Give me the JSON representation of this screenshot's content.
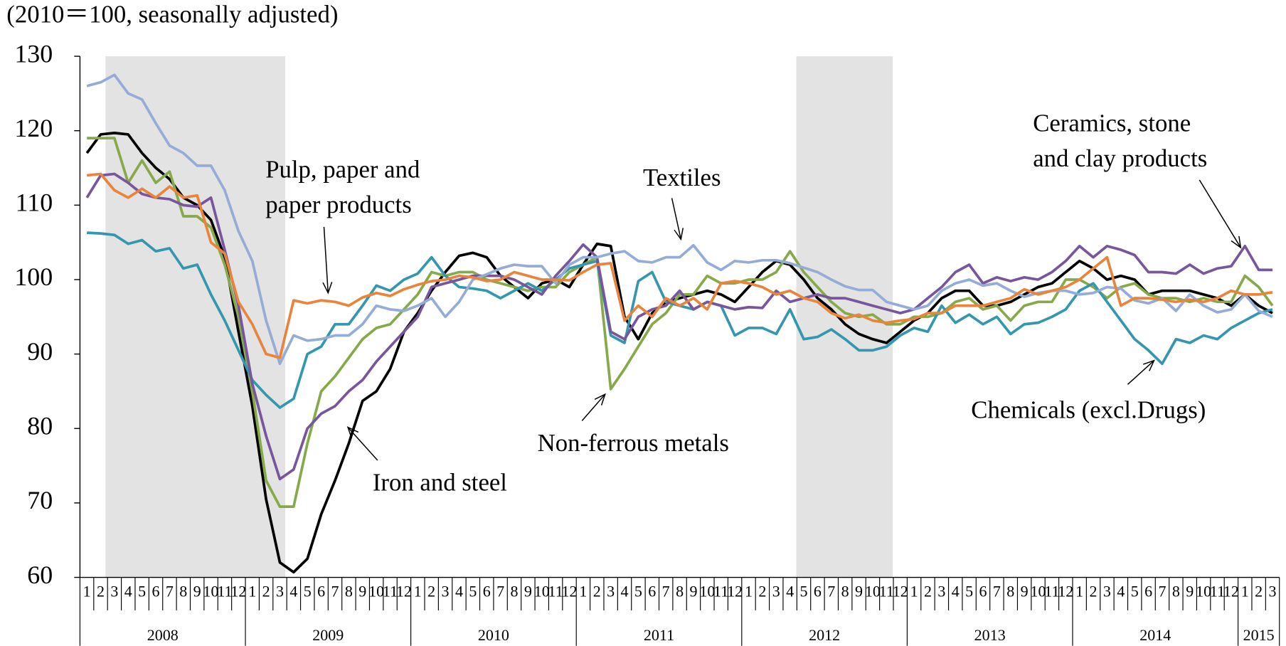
{
  "chart_data": {
    "type": "line",
    "subtitle": "(2010＝100, seasonally adjusted)",
    "categories": [
      "1",
      "2",
      "3",
      "4",
      "5",
      "6",
      "7",
      "8",
      "9",
      "10",
      "11",
      "12",
      "1",
      "2",
      "3",
      "4",
      "5",
      "6",
      "7",
      "8",
      "9",
      "10",
      "11",
      "12",
      "1",
      "2",
      "3",
      "4",
      "5",
      "6",
      "7",
      "8",
      "9",
      "10",
      "11",
      "12",
      "1",
      "2",
      "3",
      "4",
      "5",
      "6",
      "7",
      "8",
      "9",
      "10",
      "11",
      "12",
      "1",
      "2",
      "3",
      "4",
      "5",
      "6",
      "7",
      "8",
      "9",
      "10",
      "11",
      "12",
      "1",
      "2",
      "3",
      "4",
      "5",
      "6",
      "7",
      "8",
      "9",
      "10",
      "11",
      "12",
      "1",
      "2",
      "3",
      "4",
      "5",
      "6",
      "7",
      "8",
      "9",
      "10",
      "11",
      "12",
      "1",
      "2",
      "3"
    ],
    "years": [
      "2008",
      "2009",
      "2010",
      "2011",
      "2012",
      "2013",
      "2014",
      "2015"
    ],
    "ylim": [
      60,
      130
    ],
    "yticks": [
      60,
      70,
      80,
      90,
      100,
      110,
      120,
      130
    ],
    "series": [
      {
        "label_lines": [
          "Iron and steel"
        ],
        "color": "#000000",
        "values": [
          117,
          119.5,
          119.7,
          119.5,
          117,
          115,
          113.5,
          111,
          110,
          108,
          103,
          93,
          83,
          70.5,
          62,
          60.7,
          62.5,
          68.5,
          73,
          78,
          83.7,
          85,
          88,
          93,
          95.5,
          98.5,
          101,
          103.2,
          103.6,
          103,
          100.5,
          99,
          97.5,
          99.5,
          100,
          99,
          102,
          104.8,
          104.5,
          95,
          92,
          95.5,
          97,
          97.5,
          98,
          98.5,
          98,
          97,
          99,
          101,
          102.5,
          102,
          100,
          97.5,
          96,
          94,
          92.7,
          92,
          91.5,
          93,
          94.5,
          95.5,
          97.5,
          98.5,
          98.5,
          96.5,
          96.5,
          97,
          98,
          99,
          99.5,
          101,
          102.5,
          101.5,
          100,
          100.5,
          100,
          98,
          98.5,
          98.5,
          98.5,
          98,
          97.5,
          96.5,
          98,
          96.5,
          95.5
        ]
      },
      {
        "label_lines": [
          "Non-ferrous metals"
        ],
        "color": "#86a94a",
        "values": [
          119,
          119,
          119,
          113,
          116,
          113,
          114.5,
          108.5,
          108.5,
          107,
          102,
          95,
          85,
          73,
          69.5,
          69.5,
          78,
          85,
          87,
          89.5,
          92,
          93.5,
          94,
          96,
          98,
          101,
          100.5,
          101,
          101,
          100,
          99.5,
          99,
          98.5,
          99,
          99,
          101,
          102,
          103,
          85.3,
          88,
          91,
          94,
          95.5,
          98,
          98,
          100.5,
          99.5,
          99.5,
          100,
          100,
          101,
          103.8,
          101,
          99,
          97,
          95.5,
          95,
          95.3,
          94,
          94,
          95,
          95,
          95.5,
          97,
          97.5,
          96,
          96.5,
          94.5,
          96.5,
          97,
          97,
          100,
          100,
          99,
          97.5,
          99,
          99.5,
          98,
          97.5,
          97.5,
          97,
          97.5,
          97,
          97,
          100.5,
          99,
          96.5
        ]
      },
      {
        "label_lines": [
          "Chemicals (excl.Drugs)"
        ],
        "color": "#3597ad",
        "values": [
          106.3,
          106.2,
          106,
          104.8,
          105.3,
          103.8,
          104.2,
          101.5,
          102,
          98,
          94.5,
          90.5,
          86.5,
          84.5,
          82.8,
          84,
          90,
          91,
          94,
          94,
          96.5,
          99.2,
          98.5,
          100,
          100.8,
          103,
          100.5,
          99,
          98.8,
          98.5,
          97.5,
          98.5,
          99.5,
          98.5,
          100,
          101.5,
          102,
          102.5,
          92.5,
          91.5,
          99.8,
          101,
          97,
          96.5,
          96,
          97,
          96.5,
          92.5,
          93.5,
          93.5,
          92.7,
          96,
          92,
          92.3,
          93.3,
          92,
          90.5,
          90.5,
          91,
          92.5,
          93.5,
          93,
          96.5,
          94.2,
          95.3,
          94,
          95,
          92.7,
          94,
          94.2,
          95,
          96,
          98.5,
          99.5,
          97,
          94.5,
          92,
          90.5,
          88.7,
          92,
          91.5,
          92.5,
          92,
          93.5,
          94.5,
          95.5,
          96
        ]
      },
      {
        "label_lines": [
          "Ceramics, stone",
          "and clay products"
        ],
        "color": "#77569c",
        "values": [
          111,
          114,
          114.2,
          113,
          111.5,
          111,
          110.8,
          110,
          109.8,
          111,
          104,
          96.5,
          86,
          79,
          73.2,
          74.5,
          80,
          82,
          83,
          85,
          86.5,
          89,
          91,
          93,
          95,
          99,
          99.5,
          100,
          100.5,
          100.5,
          100.5,
          100,
          99,
          98,
          100.5,
          102.5,
          104.7,
          103,
          93,
          92,
          95,
          96,
          96.5,
          98.5,
          96,
          97,
          96.5,
          96,
          96.3,
          96.2,
          98.5,
          97,
          97.5,
          98,
          97.5,
          97.5,
          97,
          96.5,
          96,
          95.5,
          96,
          97.5,
          99,
          101,
          102,
          99.5,
          100.3,
          99.8,
          100.3,
          100,
          101,
          102.5,
          104.5,
          103,
          104.5,
          104,
          103.3,
          101,
          101,
          100.8,
          102,
          100.8,
          101.5,
          101.8,
          104.5,
          101.3,
          101.3
        ]
      },
      {
        "label_lines": [
          "Textiles"
        ],
        "color": "#95acd6",
        "values": [
          126,
          126.5,
          127.5,
          125,
          124.2,
          121,
          118,
          117,
          115.3,
          115.3,
          112,
          106.5,
          102.5,
          94.5,
          88.7,
          92.5,
          91.8,
          92,
          92.5,
          92.5,
          94,
          96.5,
          96,
          95.8,
          96.5,
          97.5,
          95,
          97,
          100,
          100.7,
          101.5,
          102,
          101.8,
          101.8,
          99.5,
          102,
          103,
          103,
          103.5,
          103.8,
          102.5,
          102.3,
          103,
          103,
          104.6,
          102.3,
          101.3,
          102.5,
          102.3,
          102.6,
          102.6,
          102.2,
          101.6,
          101,
          100,
          99.1,
          98.6,
          98.6,
          97,
          96.5,
          96,
          96.5,
          98.5,
          99.5,
          100,
          99.2,
          99.5,
          98.5,
          97.7,
          98.2,
          98.5,
          98.5,
          98,
          98.2,
          99,
          98.8,
          97.2,
          96.8,
          97.5,
          95.8,
          98,
          96.5,
          95.6,
          96,
          98,
          95.8,
          95
        ]
      },
      {
        "label_lines": [
          "Pulp, paper and",
          "paper products"
        ],
        "color": "#e8843c",
        "values": [
          114,
          114.2,
          112,
          111,
          112.2,
          111,
          112.5,
          111,
          111.3,
          105,
          103.5,
          97,
          94,
          90,
          89.5,
          97.2,
          96.8,
          97.2,
          97,
          96.5,
          97.6,
          98.2,
          97.8,
          98.7,
          99.3,
          99.8,
          100,
          100.5,
          100.3,
          99.8,
          100,
          101,
          100.5,
          100,
          100,
          99.9,
          101,
          102,
          102.2,
          94.5,
          96.5,
          95,
          97.5,
          96.5,
          97.5,
          96,
          99.5,
          99.8,
          99.5,
          99,
          98,
          98.5,
          97.5,
          97,
          95.5,
          94.8,
          95.3,
          94.5,
          94.2,
          94.5,
          94.7,
          95.5,
          95.5,
          96.5,
          96.5,
          96.5,
          97,
          97.5,
          98.7,
          98,
          98.5,
          99,
          100,
          101.5,
          103,
          96.5,
          97.5,
          97.5,
          97.3,
          97,
          97.3,
          97,
          97.5,
          98.5,
          98,
          98,
          98.3
        ]
      }
    ]
  }
}
